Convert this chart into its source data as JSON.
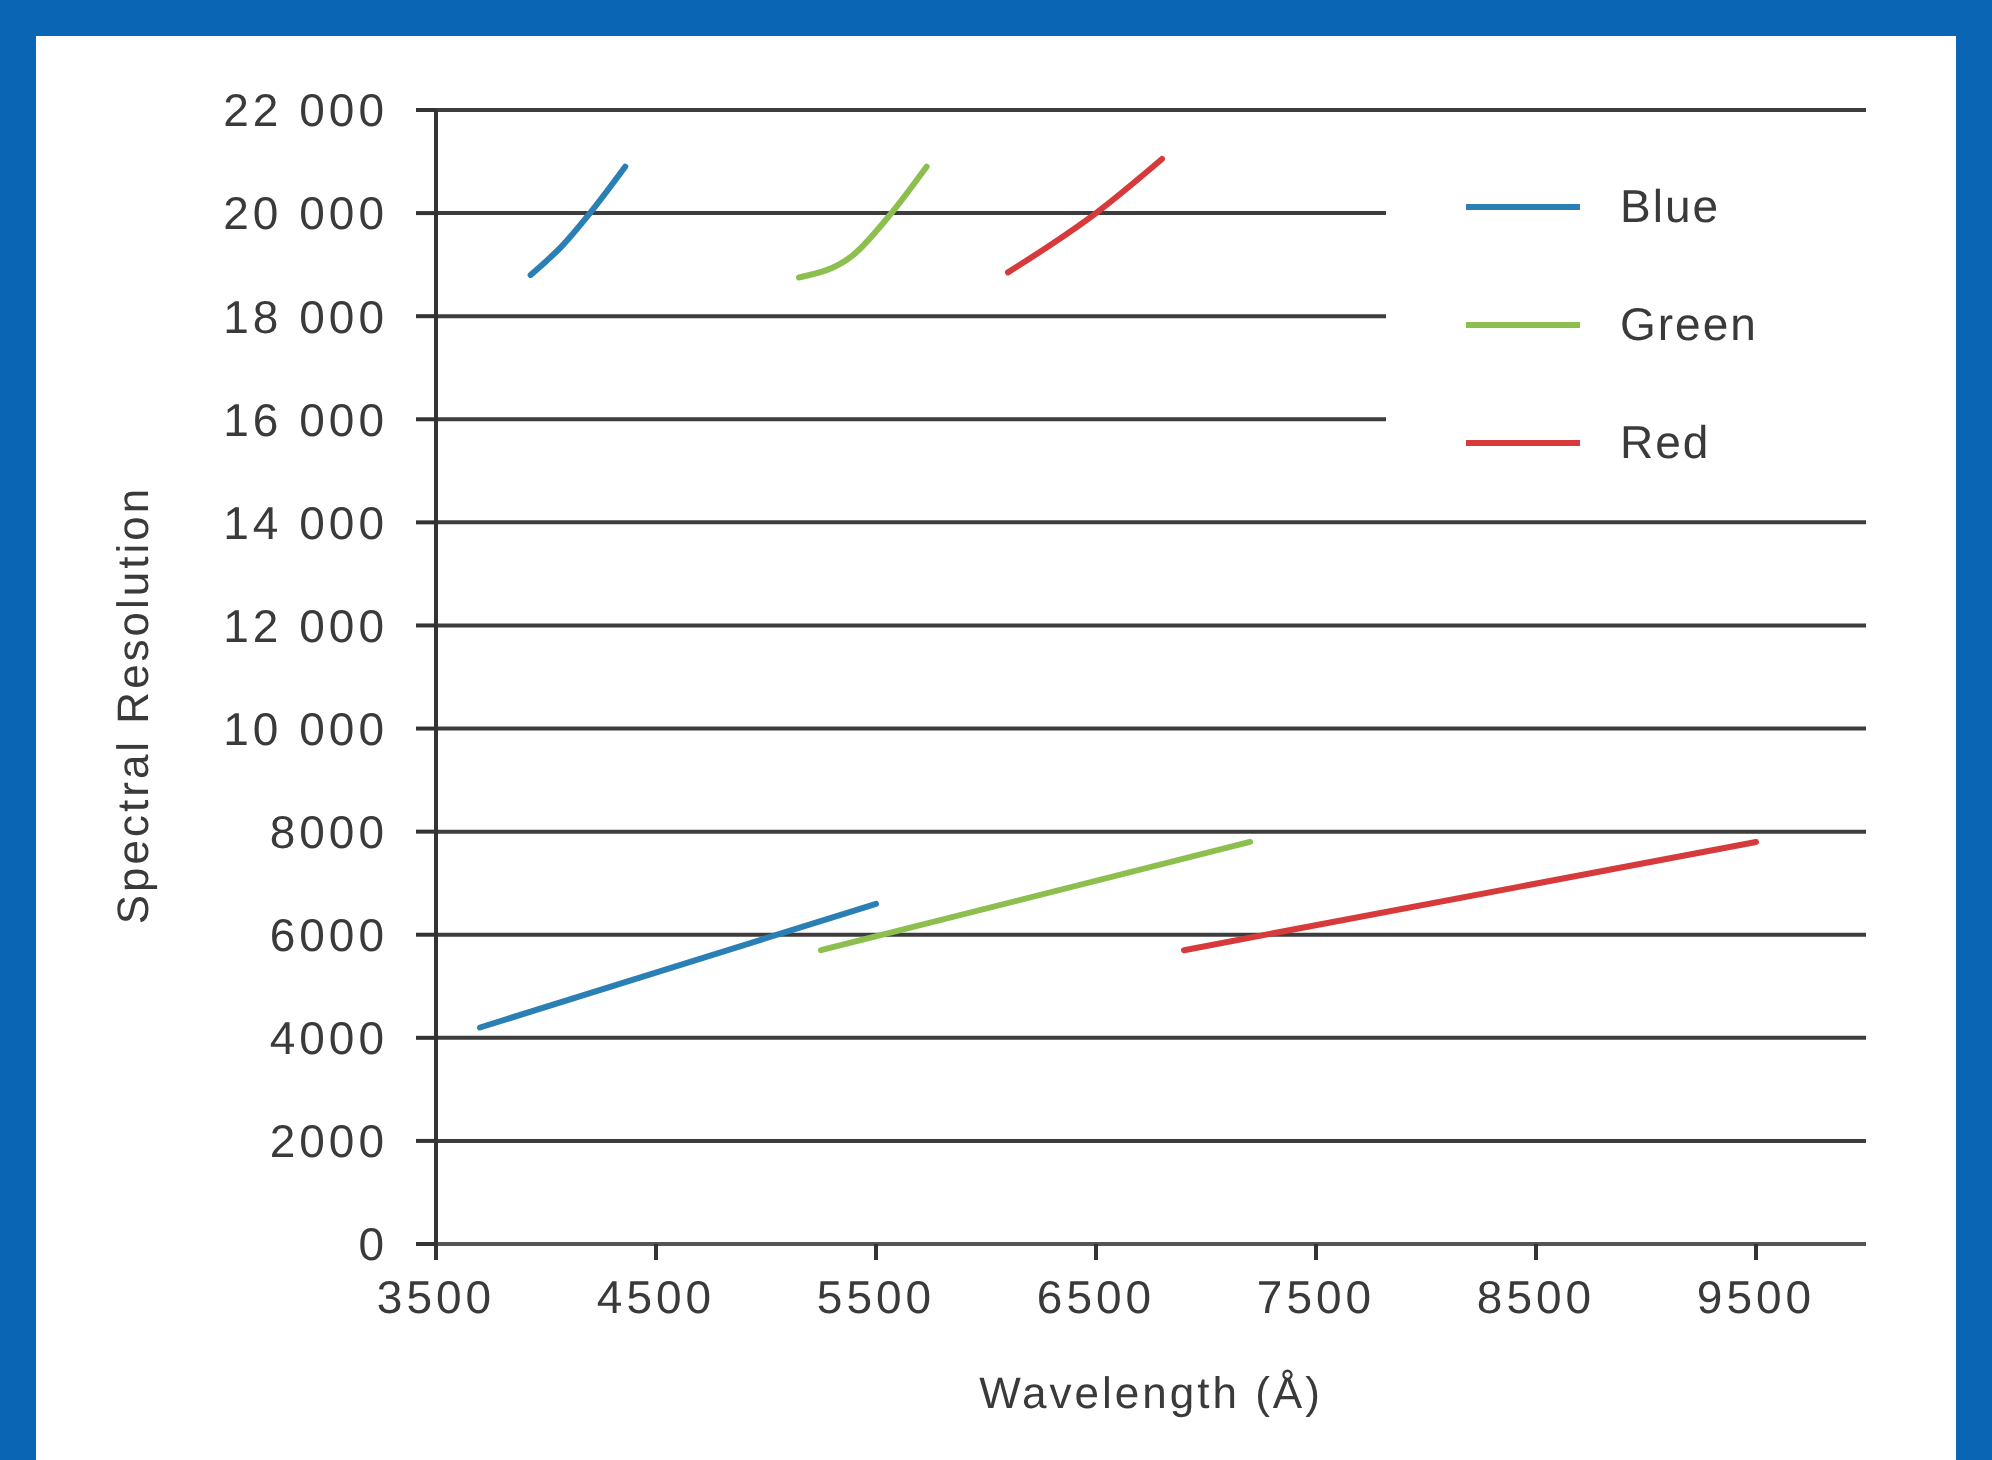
{
  "chart_data": {
    "type": "line",
    "xlabel": "Wavelength (Å)",
    "ylabel": "Spectral Resolution",
    "xlim": [
      3500,
      10000
    ],
    "xticks": [
      3500,
      4500,
      5500,
      6500,
      7500,
      8500,
      9500
    ],
    "ylim": [
      0,
      22000
    ],
    "yticks": [
      0,
      2000,
      4000,
      6000,
      8000,
      {
        "value": 10000,
        "label": "10 000"
      },
      {
        "value": 12000,
        "label": "12 000"
      },
      {
        "value": 14000,
        "label": "14 000"
      },
      {
        "value": 16000,
        "label": "16 000"
      },
      {
        "value": 18000,
        "label": "18 000"
      },
      {
        "value": 20000,
        "label": "20 000"
      },
      {
        "value": 22000,
        "label": "22 000"
      }
    ],
    "grid": "y",
    "legend": "top right",
    "marker": "none",
    "series": [
      {
        "name": "Blue",
        "color": "#2a7fb5",
        "x": [
          3700,
          5500
        ],
        "values": [
          4200,
          6600
        ]
      },
      {
        "color": "#2a7fb5",
        "x": [
          3930,
          4070,
          4200,
          4360
        ],
        "values": [
          18800,
          19350,
          20000,
          20900
        ]
      },
      {
        "name": "Green",
        "color": "#8cbf4d",
        "x": [
          5250,
          7200
        ],
        "values": [
          5700,
          7800
        ]
      },
      {
        "color": "#8cbf4d",
        "x": [
          5150,
          5400,
          5570,
          5730
        ],
        "values": [
          18750,
          19200,
          20000,
          20900
        ]
      },
      {
        "name": "Red",
        "color": "#d63a3a",
        "x": [
          6900,
          9500
        ],
        "values": [
          5700,
          7800
        ]
      },
      {
        "color": "#d63a3a",
        "x": [
          6100,
          6500,
          6800
        ],
        "values": [
          18850,
          20000,
          21050
        ]
      }
    ]
  }
}
